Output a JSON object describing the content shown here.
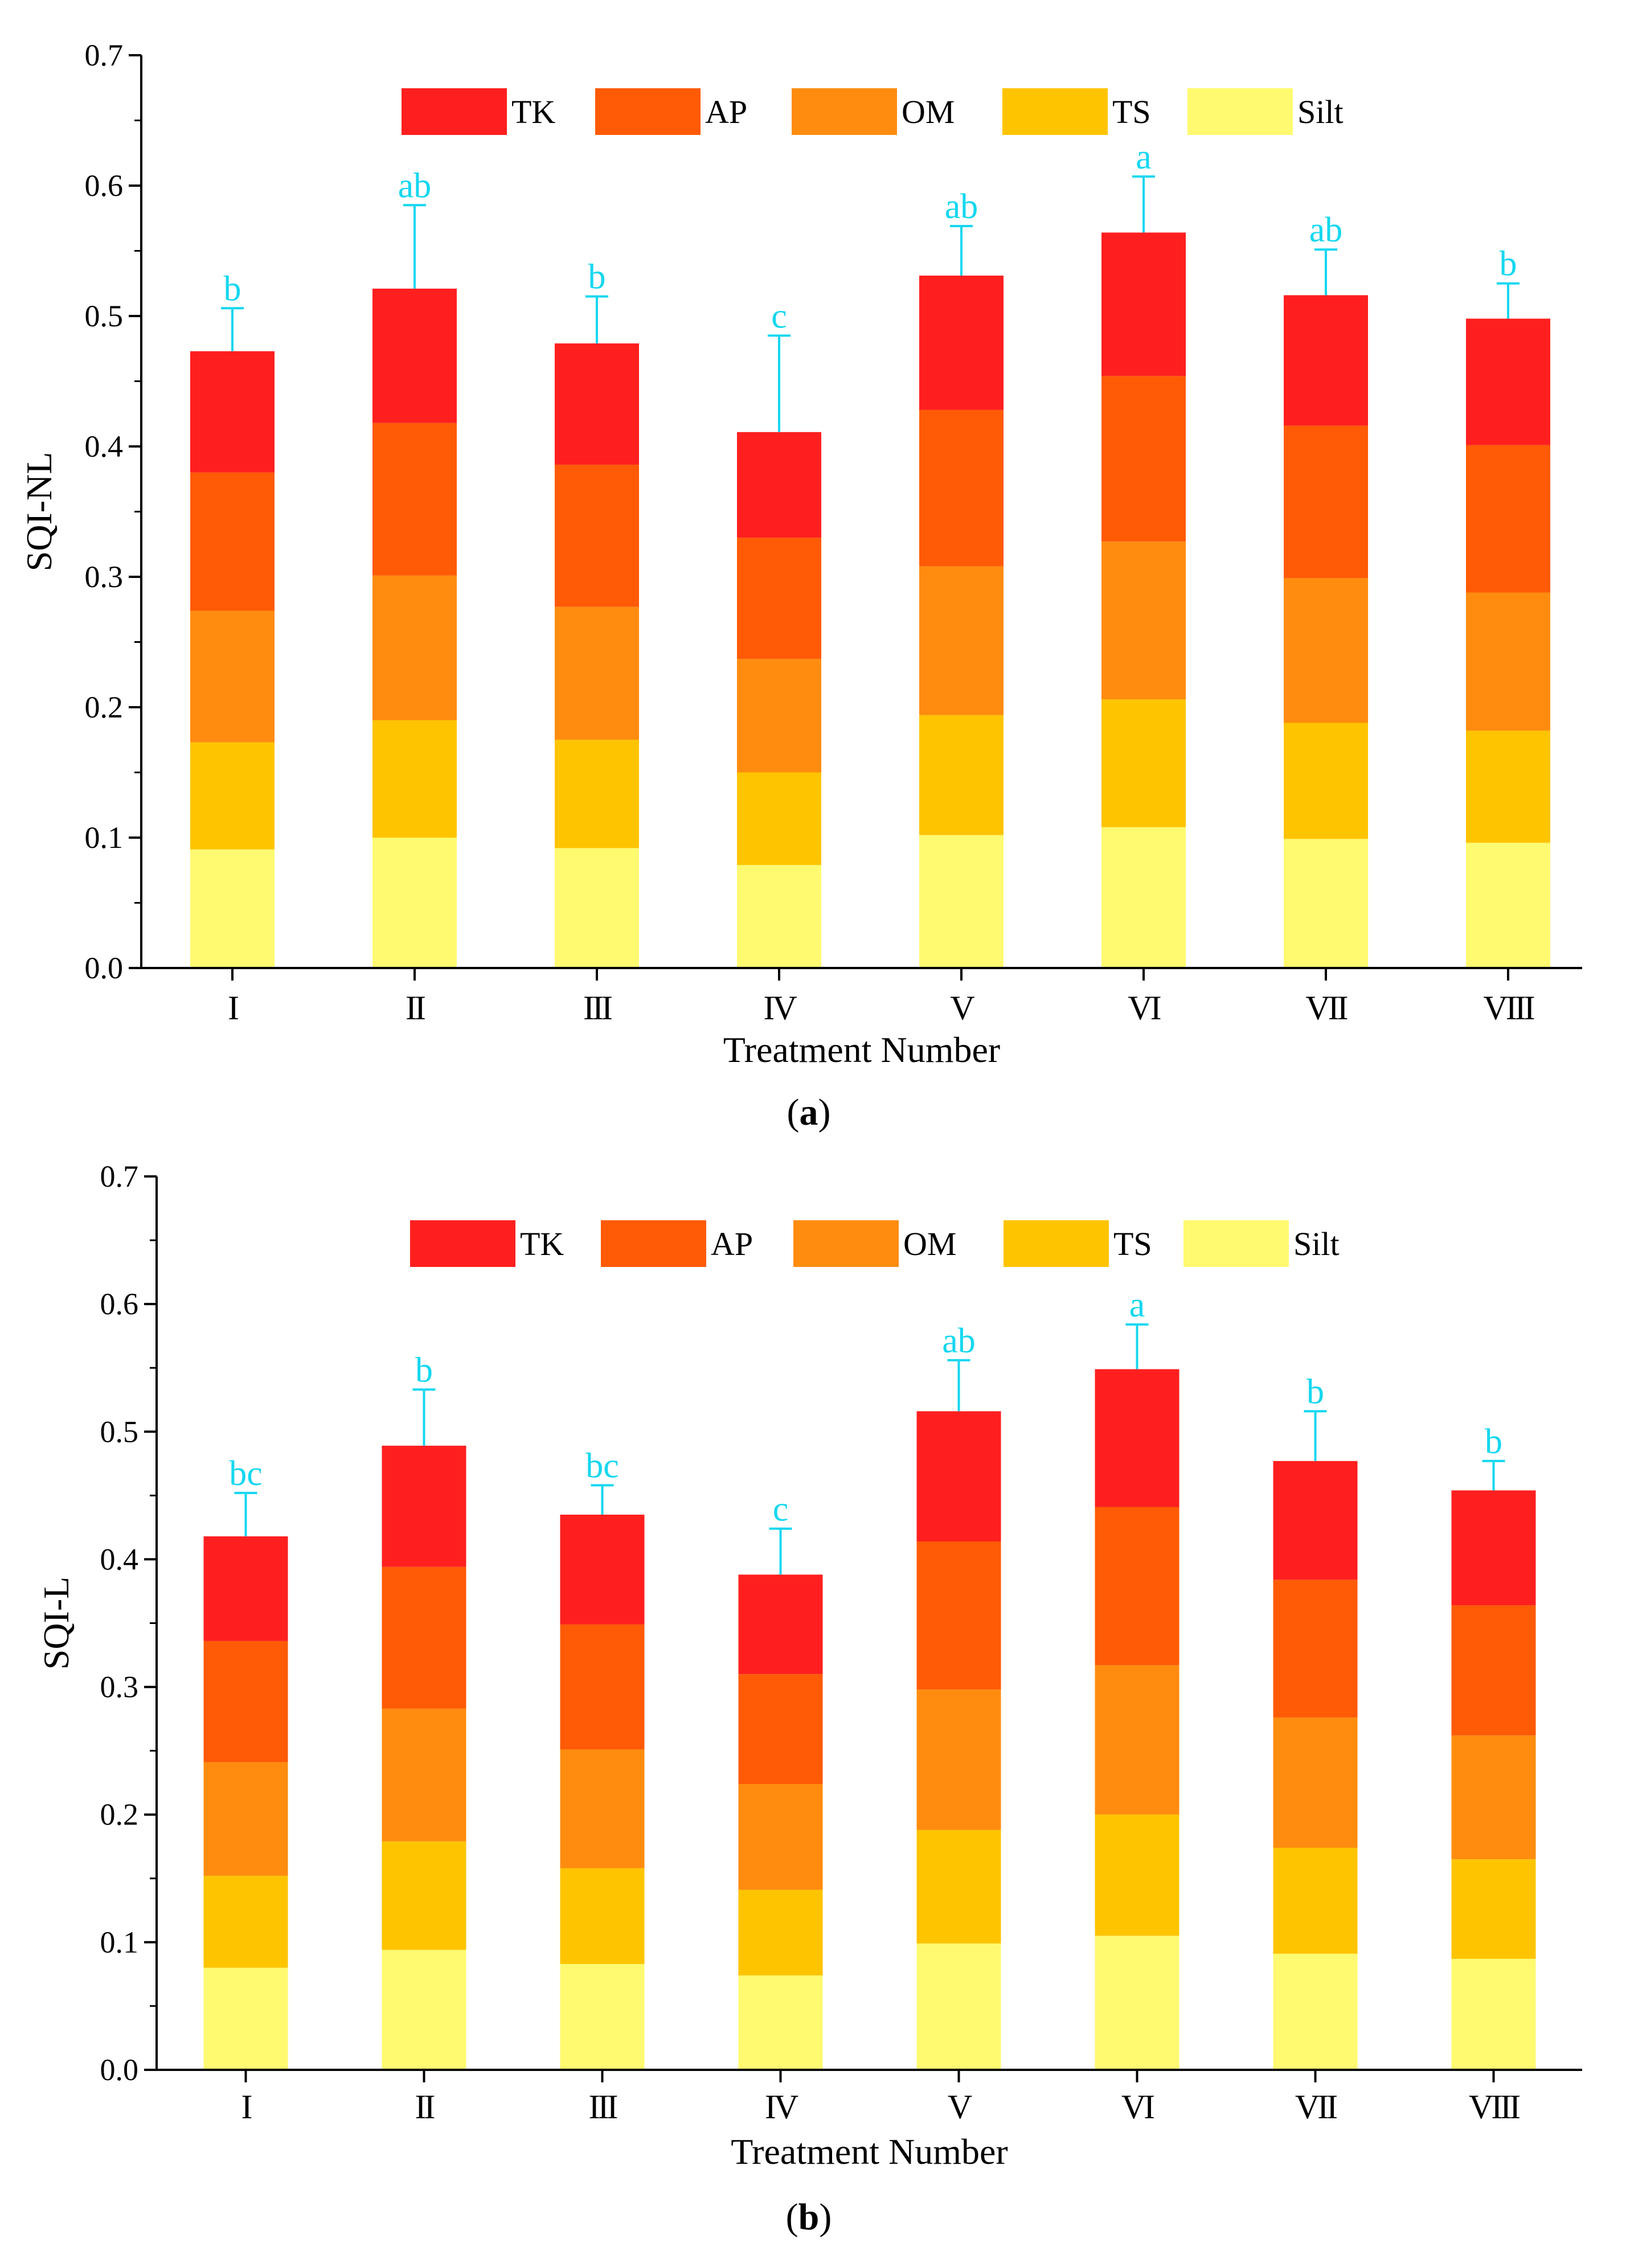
{
  "colors": {
    "TK": "#ff1f1f",
    "AP": "#ff5a05",
    "OM": "#ff8c0f",
    "TS": "#ffc400",
    "Silt": "#fffa70",
    "letters": "#14d7f0",
    "axis": "#000000"
  },
  "chart_data": [
    {
      "type": "bar",
      "stacked": true,
      "panel_label": "a",
      "xlabel": "Treatment Number",
      "ylabel": "SQI-NL",
      "ylim": [
        0,
        0.7
      ],
      "yticks": [
        "0.0",
        "0.1",
        "0.2",
        "0.3",
        "0.4",
        "0.5",
        "0.6",
        "0.7"
      ],
      "categories": [
        "I",
        "II",
        "III",
        "IV",
        "V",
        "VI",
        "VII",
        "VIII"
      ],
      "legend": [
        "TK",
        "AP",
        "OM",
        "TS",
        "Silt"
      ],
      "series": [
        {
          "name": "Silt",
          "values": [
            0.091,
            0.1,
            0.092,
            0.079,
            0.102,
            0.108,
            0.099,
            0.096
          ]
        },
        {
          "name": "TS",
          "values": [
            0.082,
            0.09,
            0.083,
            0.071,
            0.092,
            0.098,
            0.089,
            0.086
          ]
        },
        {
          "name": "OM",
          "values": [
            0.101,
            0.111,
            0.102,
            0.087,
            0.114,
            0.121,
            0.111,
            0.106
          ]
        },
        {
          "name": "AP",
          "values": [
            0.106,
            0.117,
            0.109,
            0.093,
            0.12,
            0.127,
            0.117,
            0.113
          ]
        },
        {
          "name": "TK",
          "values": [
            0.093,
            0.103,
            0.093,
            0.081,
            0.103,
            0.11,
            0.1,
            0.097
          ]
        }
      ],
      "totals": [
        0.473,
        0.521,
        0.479,
        0.411,
        0.531,
        0.564,
        0.516,
        0.498
      ],
      "error_upper": [
        0.506,
        0.585,
        0.515,
        0.485,
        0.569,
        0.607,
        0.551,
        0.525
      ],
      "significance": [
        "b",
        "ab",
        "b",
        "c",
        "ab",
        "a",
        "ab",
        "b"
      ]
    },
    {
      "type": "bar",
      "stacked": true,
      "panel_label": "b",
      "xlabel": "Treatment Number",
      "ylabel": "SQI-L",
      "ylim": [
        0,
        0.7
      ],
      "yticks": [
        "0.0",
        "0.1",
        "0.2",
        "0.3",
        "0.4",
        "0.5",
        "0.6",
        "0.7"
      ],
      "categories": [
        "I",
        "II",
        "III",
        "IV",
        "V",
        "VI",
        "VII",
        "VIII"
      ],
      "legend": [
        "TK",
        "AP",
        "OM",
        "TS",
        "Silt"
      ],
      "series": [
        {
          "name": "Silt",
          "values": [
            0.08,
            0.094,
            0.083,
            0.074,
            0.099,
            0.105,
            0.091,
            0.087
          ]
        },
        {
          "name": "TS",
          "values": [
            0.072,
            0.085,
            0.075,
            0.067,
            0.089,
            0.095,
            0.083,
            0.078
          ]
        },
        {
          "name": "OM",
          "values": [
            0.089,
            0.104,
            0.093,
            0.083,
            0.11,
            0.117,
            0.102,
            0.097
          ]
        },
        {
          "name": "AP",
          "values": [
            0.095,
            0.111,
            0.098,
            0.086,
            0.116,
            0.124,
            0.108,
            0.102
          ]
        },
        {
          "name": "TK",
          "values": [
            0.082,
            0.095,
            0.086,
            0.078,
            0.102,
            0.108,
            0.093,
            0.09
          ]
        }
      ],
      "totals": [
        0.418,
        0.489,
        0.435,
        0.388,
        0.516,
        0.549,
        0.477,
        0.454
      ],
      "error_upper": [
        0.452,
        0.533,
        0.458,
        0.424,
        0.556,
        0.584,
        0.516,
        0.477
      ],
      "significance": [
        "bc",
        "b",
        "bc",
        "c",
        "ab",
        "a",
        "b",
        "b"
      ]
    }
  ]
}
